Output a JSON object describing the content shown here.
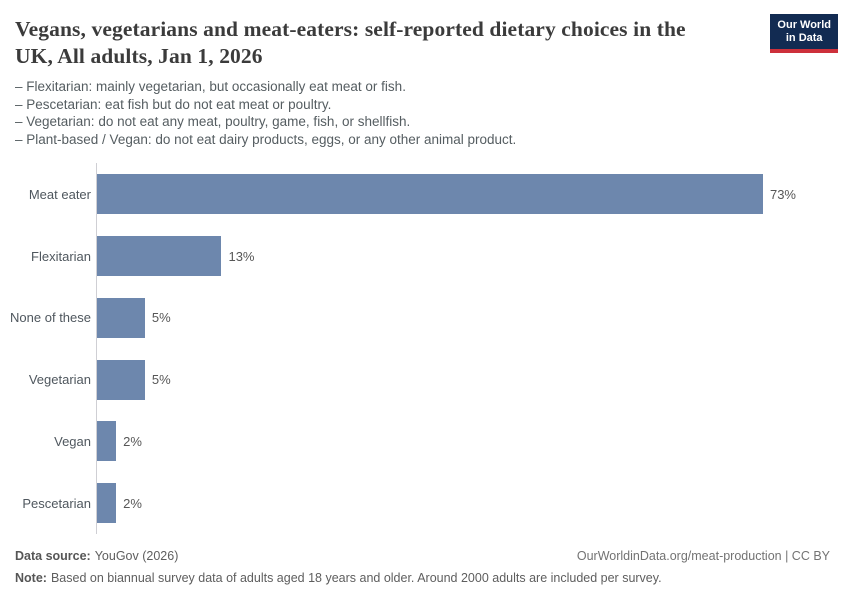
{
  "header": {
    "title": "Vegans, vegetarians and meat-eaters: self-reported dietary choices in the UK, All adults, Jan 1, 2026",
    "logo": {
      "line1": "Our World",
      "line2": "in Data"
    }
  },
  "subtitle": {
    "lines": [
      "– Flexitarian: mainly vegetarian, but occasionally eat meat or fish.",
      "– Pescetarian: eat fish but do not eat meat or poultry.",
      "– Vegetarian: do not eat any meat, poultry, game, fish, or shellfish.",
      "– Plant-based / Vegan: do not eat dairy products, eggs, or any other animal product."
    ]
  },
  "chart_data": {
    "type": "bar",
    "orientation": "horizontal",
    "title": "Vegans, vegetarians and meat-eaters: self-reported dietary choices in the UK, All adults, Jan 1, 2026",
    "categories": [
      "Meat eater",
      "Flexitarian",
      "None of these",
      "Vegetarian",
      "Vegan",
      "Pescetarian"
    ],
    "values": [
      73,
      13,
      5,
      5,
      2,
      2
    ],
    "value_labels": [
      "73%",
      "13%",
      "5%",
      "5%",
      "2%",
      "2%"
    ],
    "unit": "%",
    "xlim": [
      0,
      73
    ],
    "grid": false,
    "legend": "none"
  },
  "footer": {
    "data_source_label": "Data source:",
    "data_source_value": "YouGov (2026)",
    "citation": "OurWorldinData.org/meat-production | CC BY",
    "note_label": "Note:",
    "note_value": "Based on biannual survey data of adults aged 18 years and older. Around 2000 adults are included per survey."
  },
  "colors": {
    "bar": "#6d87ad",
    "axis_line": "#cfcfd4",
    "logo_background": "#122b52",
    "logo_underline": "#cd303b",
    "title_text": "#3b3b3b",
    "subtitle_text": "#555d61",
    "footer_text": "#5e5e5e"
  }
}
